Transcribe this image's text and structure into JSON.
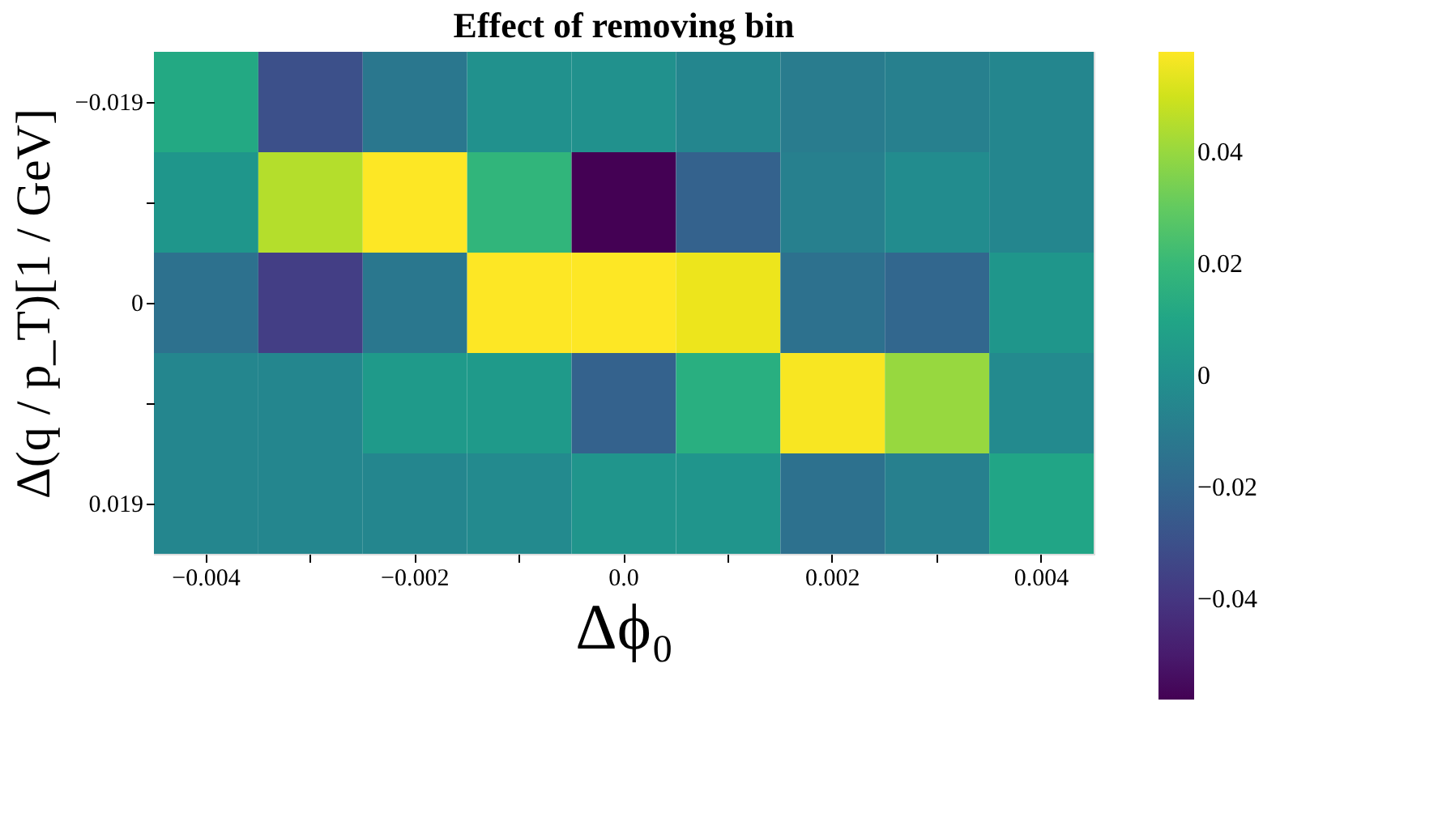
{
  "chart_data": {
    "type": "heatmap",
    "title": "Effect of removing bin",
    "xlabel": "Δϕ₀",
    "ylabel": "Δ(q / p_T)[1 / GeV]",
    "categories": [
      "−0.004",
      null,
      "−0.002",
      null,
      "0.0",
      null,
      "0.002",
      null,
      "0.004"
    ],
    "y_categories": [
      "−0.019",
      null,
      "0",
      null,
      "0.019"
    ],
    "cells": [
      [
        0.012,
        -0.03,
        -0.012,
        0.0,
        0.0,
        -0.005,
        -0.01,
        -0.008,
        -0.005
      ],
      [
        0.003,
        0.045,
        0.058,
        0.018,
        -0.058,
        -0.022,
        -0.008,
        -0.002,
        -0.005
      ],
      [
        -0.015,
        -0.037,
        -0.012,
        0.058,
        0.058,
        0.055,
        -0.015,
        -0.02,
        0.003
      ],
      [
        -0.005,
        -0.005,
        0.005,
        0.005,
        -0.022,
        0.015,
        0.057,
        0.04,
        -0.003
      ],
      [
        -0.005,
        -0.005,
        -0.005,
        -0.003,
        0.002,
        0.002,
        -0.015,
        -0.008,
        0.01
      ]
    ],
    "clim": [
      -0.058,
      0.058
    ],
    "cticks": [
      -0.04,
      -0.02,
      0,
      0.02,
      0.04
    ]
  }
}
